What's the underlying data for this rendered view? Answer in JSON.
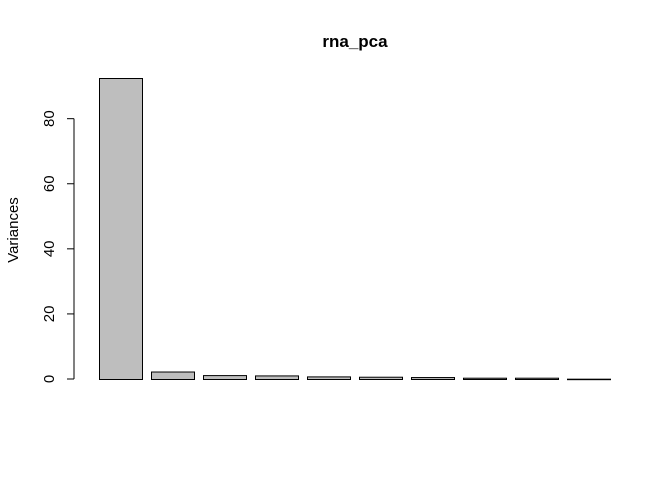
{
  "chart_data": {
    "type": "bar",
    "title": "rna_pca",
    "xlabel": "",
    "ylabel": "Variances",
    "ylim": [
      0,
      92.5
    ],
    "y_ticks": [
      0,
      20,
      40,
      60,
      80
    ],
    "bar_fill": "#bebebe",
    "bar_stroke": "#000000",
    "values": [
      92.5,
      2.3,
      1.2,
      1.1,
      0.8,
      0.7,
      0.6,
      0.4,
      0.4,
      0.1
    ]
  }
}
